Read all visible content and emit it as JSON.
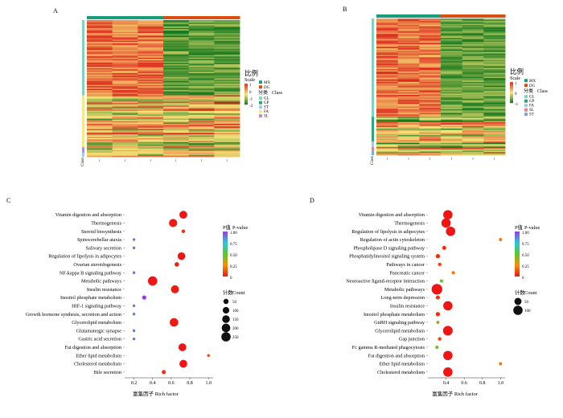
{
  "chart_data": [
    {
      "panel": "A",
      "type": "heatmap",
      "group_colors": {
        "MX": "#1a9c78",
        "DG": "#d94f10"
      },
      "column_groups": [
        "MX",
        "MX",
        "MX",
        "DG",
        "DG",
        "DG"
      ],
      "column_labels": [
        "",
        "",
        "",
        "",
        "",
        ""
      ],
      "row_class_label": "Class",
      "classes": [
        {
          "name": "GL",
          "color": "#7fd3c0"
        },
        {
          "name": "GP",
          "color": "#2fa678"
        },
        {
          "name": "ST",
          "color": "#a3c9e8"
        },
        {
          "name": "FA",
          "color": "#f3e88c"
        },
        {
          "name": "SL",
          "color": "#b28fd0"
        }
      ],
      "row_blocks": [
        {
          "class": "GL",
          "fraction": 0.55,
          "pattern": [
            "high",
            "high",
            "high",
            "low",
            "low",
            "low"
          ]
        },
        {
          "class": "FA",
          "fraction": 0.38,
          "pattern": [
            "mix",
            "mix",
            "mix",
            "mix",
            "mix",
            "mix"
          ]
        },
        {
          "class": "SL",
          "fraction": 0.04,
          "pattern": [
            "mix",
            "mix",
            "mix",
            "mix",
            "mix",
            "mix"
          ]
        },
        {
          "class": "ST",
          "fraction": 0.03,
          "pattern": [
            "mix",
            "mix",
            "mix",
            "mix",
            "mix",
            "mix"
          ]
        }
      ],
      "scale": {
        "title_cn": "比例",
        "title_en": "Scale",
        "ticks": [
          "1",
          "0",
          "-1",
          "-2"
        ]
      },
      "class_legend_title": {
        "cn": "分类",
        "en": "Class"
      },
      "group_legend": [
        "MX",
        "DG"
      ]
    },
    {
      "panel": "B",
      "type": "heatmap",
      "group_colors": {
        "MX": "#1a9c78",
        "DG": "#d94f10"
      },
      "column_groups": [
        "MX",
        "MX",
        "MX",
        "DG",
        "DG",
        "DG"
      ],
      "column_labels": [
        "",
        "",
        "",
        "",
        "",
        ""
      ],
      "row_class_label": "Class",
      "classes": [
        {
          "name": "GL",
          "color": "#7fd3c0"
        },
        {
          "name": "GP",
          "color": "#2fa678"
        },
        {
          "name": "FA",
          "color": "#a3c9e8"
        },
        {
          "name": "SL",
          "color": "#f08080"
        },
        {
          "name": "ST",
          "color": "#7aa6d8"
        }
      ],
      "row_blocks": [
        {
          "class": "GL",
          "fraction": 0.72,
          "pattern": [
            "high",
            "high",
            "high",
            "low",
            "low",
            "low"
          ]
        },
        {
          "class": "GP",
          "fraction": 0.18,
          "pattern": [
            "mix",
            "mix",
            "mix",
            "mix",
            "mix",
            "mix"
          ]
        },
        {
          "class": "FA",
          "fraction": 0.04,
          "pattern": [
            "mix",
            "mix",
            "mix",
            "mix",
            "mix",
            "mix"
          ]
        },
        {
          "class": "SL",
          "fraction": 0.03,
          "pattern": [
            "mix",
            "mix",
            "mix",
            "mix",
            "mix",
            "mix"
          ]
        },
        {
          "class": "ST",
          "fraction": 0.03,
          "pattern": [
            "mix",
            "mix",
            "mix",
            "mix",
            "mix",
            "mix"
          ]
        }
      ],
      "scale": {
        "title_cn": "比例",
        "title_en": "Scale",
        "ticks": [
          "1",
          "0",
          "-1"
        ]
      },
      "class_legend_title": {
        "cn": "分类",
        "en": "Class"
      },
      "group_legend": [
        "MX",
        "DG"
      ]
    },
    {
      "panel": "C",
      "type": "scatter",
      "xlabel": "富集因子 Rich factor",
      "xlim": [
        0.1,
        1.05
      ],
      "xticks": [
        0.2,
        0.4,
        0.6,
        0.8,
        1.0
      ],
      "xtick_labels": [
        "0.2",
        "0.4",
        "0.6",
        "0.8",
        "1.0"
      ],
      "p_legend": {
        "title_cn": "P值",
        "title_en": "P-value",
        "ticks": [
          "1.00",
          "0.75",
          "0.50",
          "0.25",
          "0"
        ]
      },
      "count_legend": {
        "title_cn": "计数",
        "title_en": "Count",
        "values": [
          50,
          100,
          150,
          200,
          250
        ]
      },
      "points": [
        {
          "label": "Vitamin digestion and absorption",
          "x": 0.73,
          "p": 0.0,
          "count": 160
        },
        {
          "label": "Thermogenesis",
          "x": 0.62,
          "p": 0.01,
          "count": 180
        },
        {
          "label": "Steroid biosynthesis",
          "x": 0.73,
          "p": 0.05,
          "count": 12
        },
        {
          "label": "Spinocerebellar ataxia",
          "x": 0.2,
          "p": 0.9,
          "count": 3
        },
        {
          "label": "Salivary secretion",
          "x": 0.2,
          "p": 0.9,
          "count": 3
        },
        {
          "label": "Regulation of lipolysis in adipocytes",
          "x": 0.71,
          "p": 0.0,
          "count": 150
        },
        {
          "label": "Ovarian steroidogenesis",
          "x": 0.66,
          "p": 0.03,
          "count": 30
        },
        {
          "label": "NF-kappa B signaling pathway",
          "x": 0.2,
          "p": 0.9,
          "count": 3
        },
        {
          "label": "Metabolic pathways",
          "x": 0.4,
          "p": 0.0,
          "count": 250
        },
        {
          "label": "Insulin resistance",
          "x": 0.64,
          "p": 0.01,
          "count": 170
        },
        {
          "label": "Inositol phosphate metabolism",
          "x": 0.31,
          "p": 1.0,
          "count": 25
        },
        {
          "label": "HIF-1 signaling pathway",
          "x": 0.2,
          "p": 0.9,
          "count": 3
        },
        {
          "label": "Growth hormone synthesis, secretion and action",
          "x": 0.2,
          "p": 0.9,
          "count": 3
        },
        {
          "label": "Glycerolipid metabolism",
          "x": 0.63,
          "p": 0.01,
          "count": 200
        },
        {
          "label": "Glutamatergic synapse",
          "x": 0.2,
          "p": 0.9,
          "count": 3
        },
        {
          "label": "Gastric acid secretion",
          "x": 0.2,
          "p": 0.9,
          "count": 3
        },
        {
          "label": "Fat digestion and absorption",
          "x": 0.72,
          "p": 0.0,
          "count": 160
        },
        {
          "label": "Ether lipid metabolism",
          "x": 1.0,
          "p": 0.1,
          "count": 3
        },
        {
          "label": "Cholesterol metabolism",
          "x": 0.73,
          "p": 0.0,
          "count": 160
        },
        {
          "label": "Bile secretion",
          "x": 0.52,
          "p": 0.05,
          "count": 20
        }
      ]
    },
    {
      "panel": "D",
      "type": "scatter",
      "xlabel": "富集因子 Rich factor",
      "xlim": [
        0.2,
        1.05
      ],
      "xticks": [
        0.4,
        0.6,
        0.8,
        1.0
      ],
      "xtick_labels": [
        "0.4",
        "0.6",
        "0.8",
        "1.0"
      ],
      "p_legend": {
        "title_cn": "P值",
        "title_en": "P-value",
        "ticks": [
          "1.00",
          "0.75",
          "0.50",
          "0.25",
          "0"
        ]
      },
      "count_legend": {
        "title_cn": "计数",
        "title_en": "Count",
        "values": [
          50,
          100
        ]
      },
      "points": [
        {
          "label": "Vitamin digestion and absorption",
          "x": 0.42,
          "p": 0.0,
          "count": 100
        },
        {
          "label": "Thermogenesis",
          "x": 0.4,
          "p": 0.0,
          "count": 100
        },
        {
          "label": "Regulation of lipolysis in adipocytes",
          "x": 0.45,
          "p": 0.0,
          "count": 100
        },
        {
          "label": "Regulation of actin cytoskeleton",
          "x": 1.0,
          "p": 0.2,
          "count": 3
        },
        {
          "label": "Phospholipase D signaling pathway",
          "x": 0.38,
          "p": 0.05,
          "count": 8
        },
        {
          "label": "Phosphatidylinositol signaling system",
          "x": 0.31,
          "p": 0.05,
          "count": 10
        },
        {
          "label": "Pathways in cancer",
          "x": 0.33,
          "p": 0.1,
          "count": 5
        },
        {
          "label": "Pancreatic cancer",
          "x": 0.48,
          "p": 0.2,
          "count": 3
        },
        {
          "label": "Neuroactive ligand-receptor interaction",
          "x": 0.35,
          "p": 0.5,
          "count": 3
        },
        {
          "label": "Metabolic pathways",
          "x": 0.3,
          "p": 0.0,
          "count": 140
        },
        {
          "label": "Long-term depression",
          "x": 0.31,
          "p": 0.05,
          "count": 8
        },
        {
          "label": "Insulin resistance",
          "x": 0.42,
          "p": 0.0,
          "count": 100
        },
        {
          "label": "Inositol phosphate metabolism",
          "x": 0.31,
          "p": 0.05,
          "count": 10
        },
        {
          "label": "GnRH signaling pathway",
          "x": 0.31,
          "p": 0.4,
          "count": 3
        },
        {
          "label": "Glycerolipid metabolism",
          "x": 0.42,
          "p": 0.0,
          "count": 110
        },
        {
          "label": "Gap junction",
          "x": 0.33,
          "p": 0.1,
          "count": 5
        },
        {
          "label": "Fc gamma R-mediated phagocytosis",
          "x": 0.3,
          "p": 0.5,
          "count": 3
        },
        {
          "label": "Fat digestion and absorption",
          "x": 0.42,
          "p": 0.0,
          "count": 100
        },
        {
          "label": "Ether lipid metabolism",
          "x": 1.0,
          "p": 0.2,
          "count": 3
        },
        {
          "label": "Cholesterol metabolism",
          "x": 0.42,
          "p": 0.0,
          "count": 100
        }
      ]
    }
  ]
}
